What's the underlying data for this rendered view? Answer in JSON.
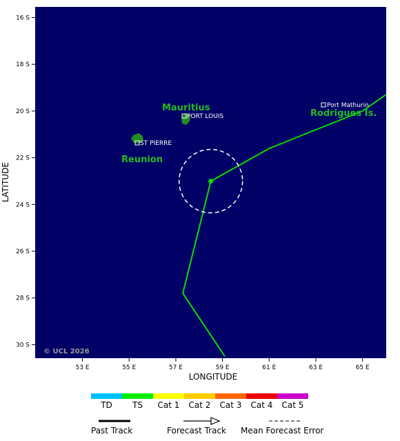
{
  "map": {
    "background": "#000066",
    "land_color": "#228b22",
    "track_color": "#00e000",
    "lon_ticks": [
      "53 E",
      "55 E",
      "57 E",
      "59 E",
      "61 E",
      "63 E",
      "65 E"
    ],
    "lat_ticks": [
      "16 S",
      "18 S",
      "20 S",
      "22 S",
      "24 S",
      "26 S",
      "28 S",
      "30 S"
    ],
    "xlabel": "LONGITUDE",
    "ylabel": "LATITUDE",
    "copyright": "© UCL 2026"
  },
  "places": {
    "mauritius_label": "Mauritius",
    "port_louis": "PORT LOUIS",
    "reunion_label": "Reunion",
    "st_pierre": "ST PIERRE",
    "rodrigues_label": "Rodrigues Is.",
    "port_mathurin": "Port Mathurin"
  },
  "track": {
    "current_position": {
      "lon": 58.5,
      "lat": -23.0
    },
    "past_points": [
      {
        "lon": 59.1,
        "lat": -30.5
      },
      {
        "lon": 57.3,
        "lat": -27.8
      },
      {
        "lon": 58.5,
        "lat": -23.0
      }
    ],
    "forecast_points": [
      {
        "lon": 58.5,
        "lat": -23.0
      },
      {
        "lon": 61.0,
        "lat": -21.6
      },
      {
        "lon": 65.0,
        "lat": -20.0
      },
      {
        "lon": 66.0,
        "lat": -19.3
      }
    ]
  },
  "legend": {
    "categories": [
      {
        "label": "TD",
        "color": "#00bfff"
      },
      {
        "label": "TS",
        "color": "#00ee00"
      },
      {
        "label": "Cat 1",
        "color": "#ffff00"
      },
      {
        "label": "Cat 2",
        "color": "#ffcc00"
      },
      {
        "label": "Cat 3",
        "color": "#ff6600"
      },
      {
        "label": "Cat 4",
        "color": "#ee0000"
      },
      {
        "label": "Cat 5",
        "color": "#cc00cc"
      }
    ],
    "past_track": "Past Track",
    "forecast_track": "Forecast Track",
    "mean_error": "Mean Forecast Error"
  }
}
